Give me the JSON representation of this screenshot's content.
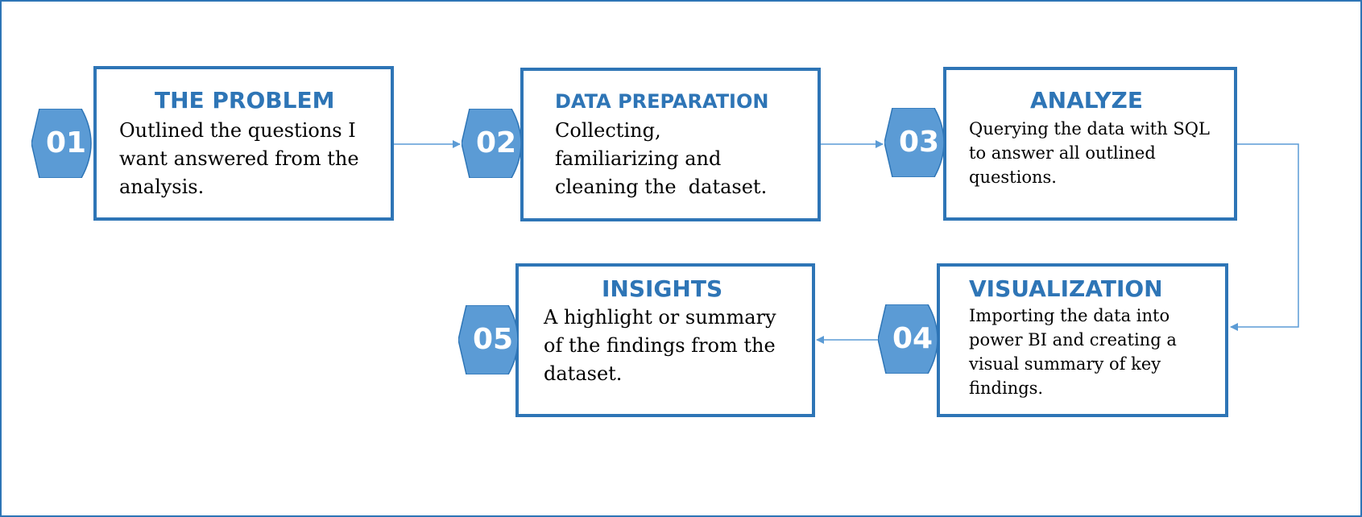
{
  "colors": {
    "accent": "#2e75b6",
    "badge_fill": "#5b9bd5",
    "badge_text": "#ffffff",
    "body_text": "#000000"
  },
  "steps": [
    {
      "number": "01",
      "title": "THE PROBLEM",
      "lines": [
        "Outlined the questions I",
        "want answered from the",
        "analysis."
      ]
    },
    {
      "number": "02",
      "title": "DATA PREPARATION",
      "lines": [
        "Collecting,",
        "familiarizing and",
        "cleaning the  dataset."
      ]
    },
    {
      "number": "03",
      "title": "ANALYZE",
      "lines": [
        "Querying the data with SQL",
        "to answer all outlined",
        "questions."
      ]
    },
    {
      "number": "04",
      "title": "VISUALIZATION",
      "lines": [
        "Importing the data into",
        "power BI and creating a",
        "visual summary of key",
        "findings."
      ]
    },
    {
      "number": "05",
      "title": "INSIGHTS",
      "lines": [
        "A highlight or summary",
        "of the findings from the",
        "dataset."
      ]
    }
  ]
}
